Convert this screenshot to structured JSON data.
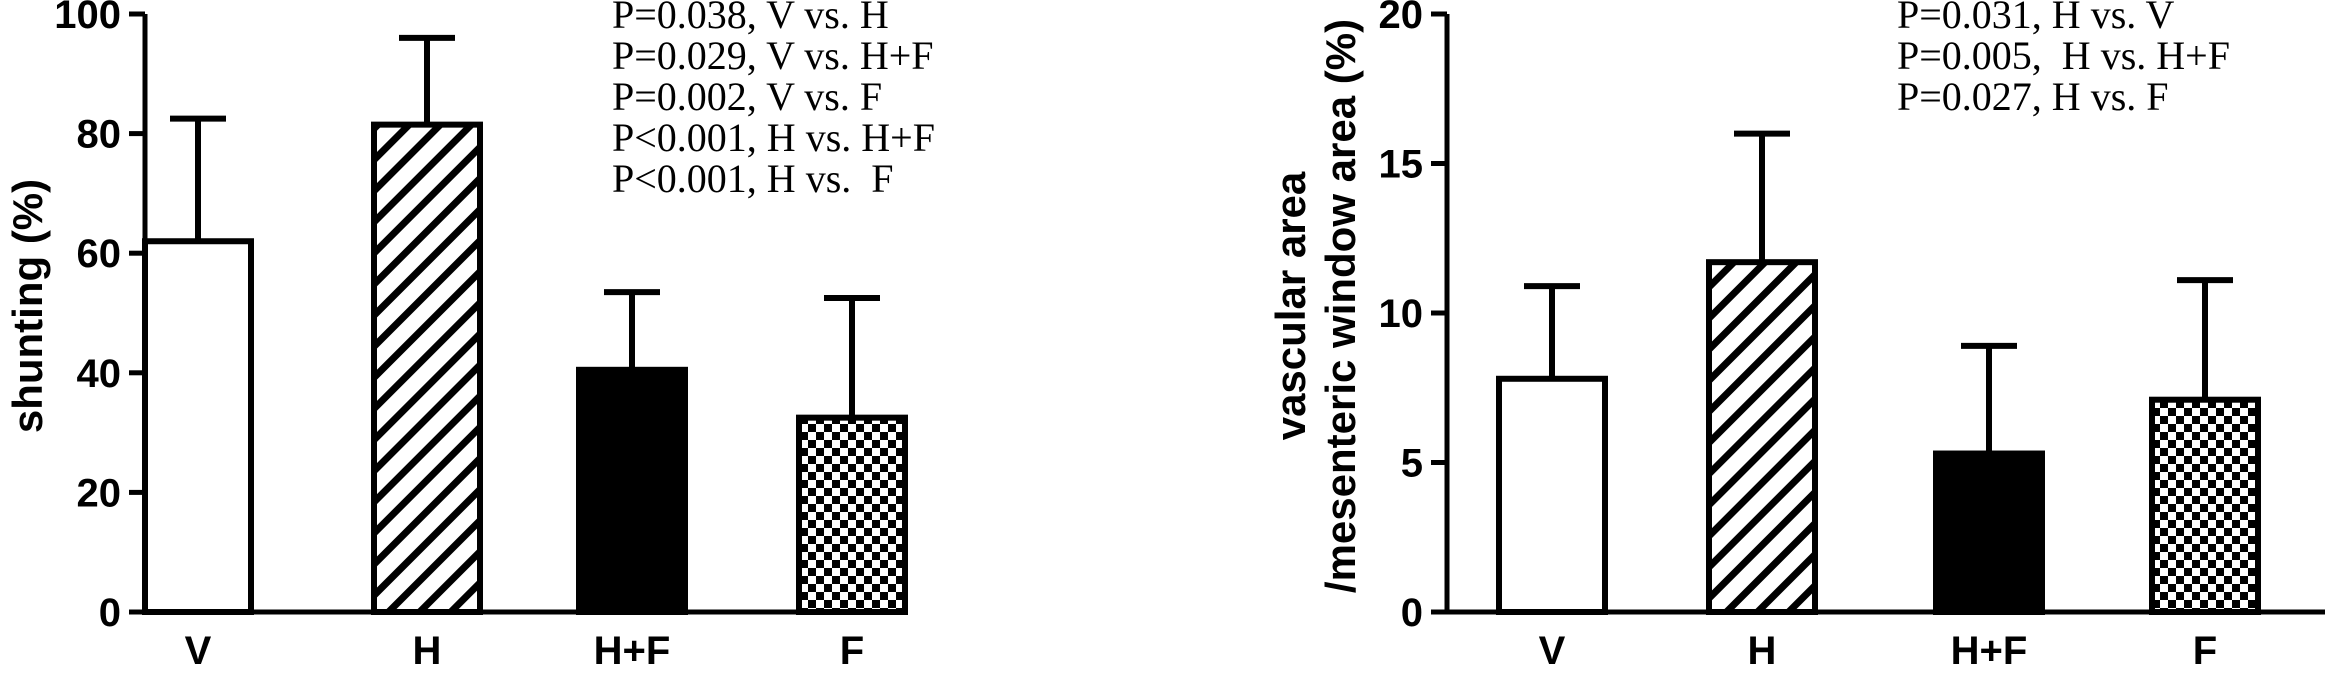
{
  "chart_data": [
    {
      "type": "bar",
      "categories": [
        "V",
        "H",
        "H+F",
        "F"
      ],
      "values": [
        62,
        81.5,
        40.5,
        32.5
      ],
      "errors": [
        20.5,
        14.5,
        13,
        20
      ],
      "fills": [
        "white",
        "hatch",
        "black",
        "checker"
      ],
      "ylabel": "shunting (%)",
      "ylim": [
        0,
        100
      ],
      "yticks": [
        0,
        20,
        40,
        60,
        80,
        100
      ],
      "annotations": [
        "P=0.038, V vs. H",
        "P=0.029, V vs. H+F",
        "P=0.002, V vs. F",
        "P<0.001, H vs. H+F",
        "P<0.001, H vs.  F"
      ]
    },
    {
      "type": "bar",
      "categories": [
        "V",
        "H",
        "H+F",
        "F"
      ],
      "values": [
        7.8,
        11.7,
        5.3,
        7.1
      ],
      "errors": [
        3.1,
        4.3,
        3.6,
        4.0
      ],
      "fills": [
        "white",
        "hatch",
        "black",
        "checker"
      ],
      "ylabel_lines": [
        "vascular area",
        "/mesenteric window area (%)"
      ],
      "ylim": [
        0,
        20
      ],
      "yticks": [
        0,
        5,
        10,
        15,
        20
      ],
      "annotations": [
        "P=0.031, H vs. V",
        "P=0.005,  H vs. H+F",
        "P=0.027, H vs. F"
      ]
    }
  ]
}
